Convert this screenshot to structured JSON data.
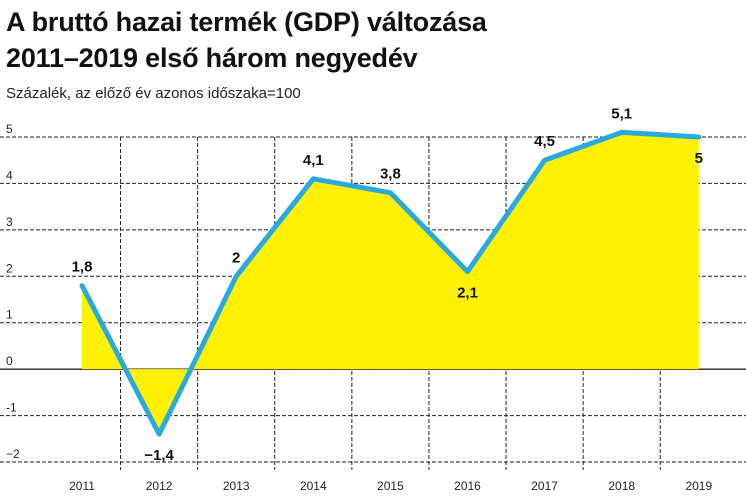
{
  "chart_data": {
    "type": "area",
    "title": [
      "A bruttó hazai termék (GDP) változása",
      "2011–2019 első három negyedév"
    ],
    "subtitle": "Százalék, az előző év azonos időszaka=100",
    "categories": [
      "2011",
      "2012",
      "2013",
      "2014",
      "2015",
      "2016",
      "2017",
      "2018",
      "2019"
    ],
    "values": [
      1.8,
      -1.4,
      2,
      4.1,
      3.8,
      2.1,
      4.5,
      5.1,
      5
    ],
    "data_labels": [
      "1,8",
      "−1,4",
      "2",
      "4,1",
      "3,8",
      "2,1",
      "4,5",
      "5,1",
      "5"
    ],
    "ylim": [
      -2,
      5
    ],
    "yticks": [
      5,
      4,
      3,
      2,
      1,
      0,
      -1,
      -2
    ],
    "ytick_labels": [
      "5",
      "4",
      "3",
      "2",
      "1",
      "0",
      "-1",
      "−2"
    ],
    "grid": true,
    "colors": {
      "line": "#2aa8e0",
      "fill": "#fff200",
      "grid": "#222222"
    }
  }
}
